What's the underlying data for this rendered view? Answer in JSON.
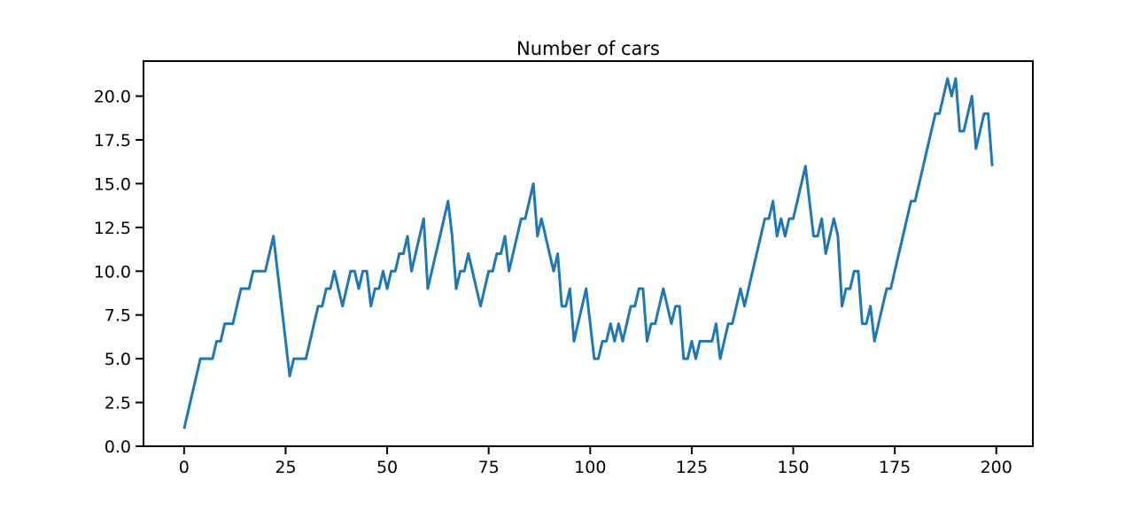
{
  "chart_data": {
    "type": "line",
    "title": "Number of cars",
    "xlabel": "",
    "ylabel": "",
    "xlim": [
      -10,
      209
    ],
    "ylim": [
      0,
      22
    ],
    "xticks": [
      0,
      25,
      50,
      75,
      100,
      125,
      150,
      175,
      200
    ],
    "xtick_labels": [
      "0",
      "25",
      "50",
      "75",
      "100",
      "125",
      "150",
      "175",
      "200"
    ],
    "yticks": [
      0,
      2.5,
      5,
      7.5,
      10,
      12.5,
      15,
      17.5,
      20
    ],
    "ytick_labels": [
      "0.0",
      "2.5",
      "5.0",
      "7.5",
      "10.0",
      "12.5",
      "15.0",
      "17.5",
      "20.0"
    ],
    "grid": false,
    "line_color": "#1f77b4",
    "series": [
      {
        "values": [
          1,
          2,
          3,
          4,
          5,
          5,
          5,
          5,
          6,
          6,
          7,
          7,
          7,
          8,
          9,
          9,
          9,
          10,
          10,
          10,
          10,
          11,
          12,
          10,
          8,
          6,
          4,
          5,
          5,
          5,
          5,
          6,
          7,
          8,
          8,
          9,
          9,
          10,
          9,
          8,
          9,
          10,
          10,
          9,
          10,
          10,
          8,
          9,
          9,
          10,
          9,
          10,
          10,
          11,
          11,
          12,
          10,
          11,
          12,
          13,
          9,
          10,
          11,
          12,
          13,
          14,
          12,
          9,
          10,
          10,
          11,
          10,
          9,
          8,
          9,
          10,
          10,
          11,
          11,
          12,
          10,
          11,
          12,
          13,
          13,
          14,
          15,
          12,
          13,
          12,
          11,
          10,
          11,
          8,
          8,
          9,
          6,
          7,
          8,
          9,
          7,
          5,
          5,
          6,
          6,
          7,
          6,
          7,
          6,
          7,
          8,
          8,
          9,
          9,
          6,
          7,
          7,
          8,
          9,
          8,
          7,
          8,
          8,
          5,
          5,
          6,
          5,
          6,
          6,
          6,
          6,
          7,
          5,
          6,
          7,
          7,
          8,
          9,
          8,
          9,
          10,
          11,
          12,
          13,
          13,
          14,
          12,
          13,
          12,
          13,
          13,
          14,
          15,
          16,
          14,
          12,
          12,
          13,
          11,
          12,
          13,
          12,
          8,
          9,
          9,
          10,
          10,
          7,
          7,
          8,
          6,
          7,
          8,
          9,
          9,
          10,
          11,
          12,
          13,
          14,
          14,
          15,
          16,
          17,
          18,
          19,
          19,
          20,
          21,
          20,
          21,
          18,
          18,
          19,
          20,
          17,
          18,
          19,
          19,
          16
        ]
      }
    ]
  }
}
